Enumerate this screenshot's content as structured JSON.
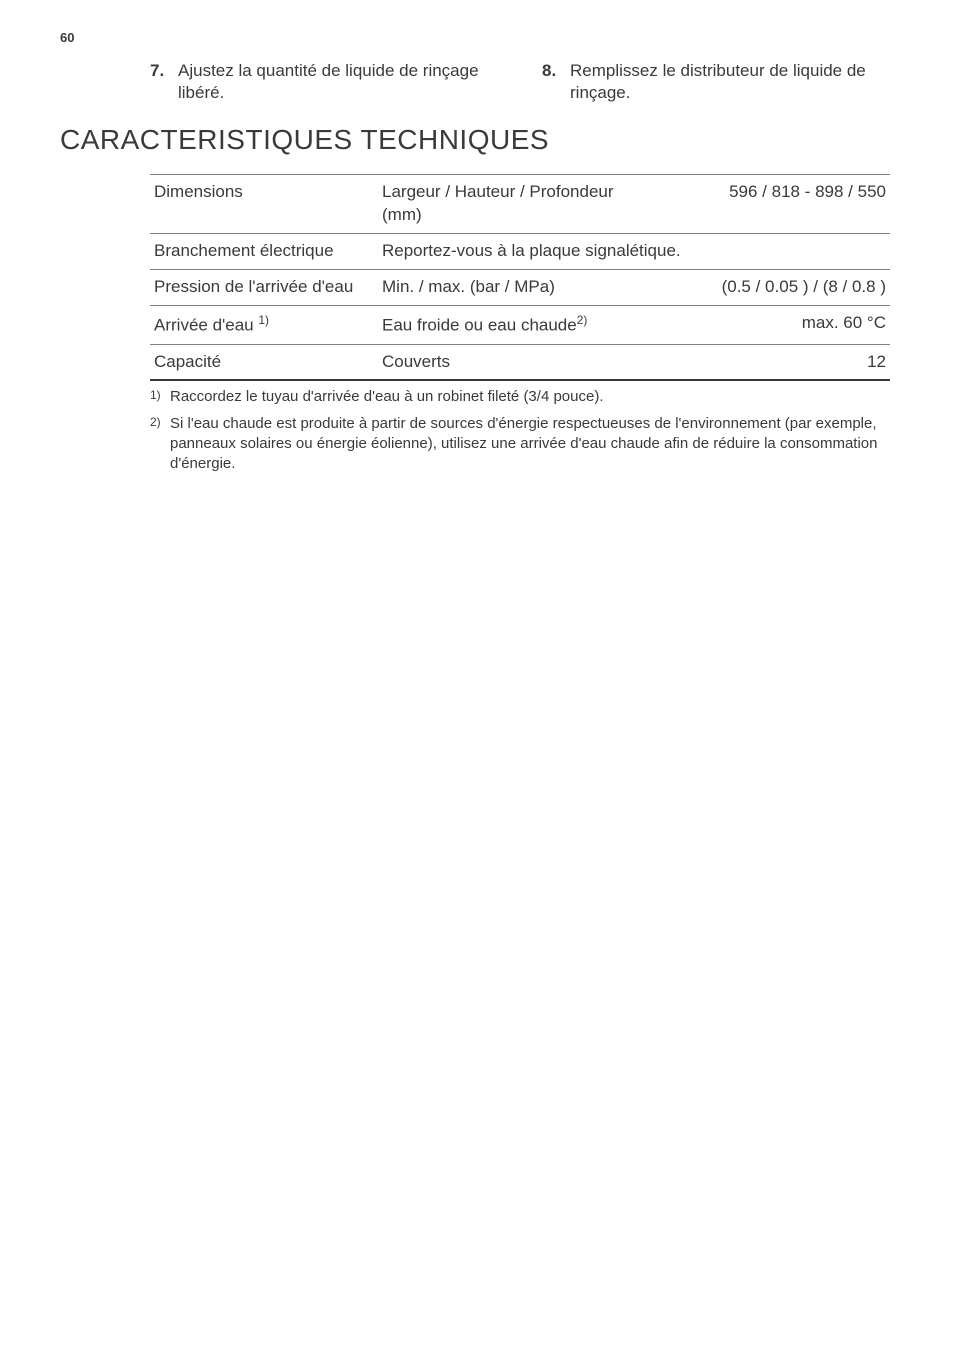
{
  "page_number": "60",
  "steps": [
    {
      "num": "7.",
      "text": "Ajustez la quantité de liquide de rinçage libéré."
    },
    {
      "num": "8.",
      "text": "Remplissez le distributeur de liquide de rinçage."
    }
  ],
  "section_title": "CARACTERISTIQUES TECHNIQUES",
  "table": {
    "rows": [
      {
        "c1": "Dimensions",
        "c2": "Largeur / Hauteur / Profondeur (mm)",
        "c3": "596 / 818 - 898 / 550",
        "sup1": "",
        "sup2": "",
        "span": false
      },
      {
        "c1": "Branchement électrique",
        "c2": "Reportez-vous à la plaque signalétique.",
        "c3": "",
        "sup1": "",
        "sup2": "",
        "span": true
      },
      {
        "c1": "Pression de l'arrivée d'eau",
        "c2": "Min. / max. (bar / MPa)",
        "c3": "(0.5 / 0.05 ) / (8 / 0.8 )",
        "sup1": "",
        "sup2": "",
        "span": false
      },
      {
        "c1": "Arrivée d'eau ",
        "c2": "Eau froide ou eau chaude",
        "c3": "max. 60 °C",
        "sup1": "1)",
        "sup2": "2)",
        "span": false
      },
      {
        "c1": "Capacité",
        "c2": "Couverts",
        "c3": "12",
        "sup1": "",
        "sup2": "",
        "span": false
      }
    ]
  },
  "footnotes": [
    {
      "num": "1)",
      "text": "Raccordez le tuyau d'arrivée d'eau à un robinet fileté (3/4 pouce)."
    },
    {
      "num": "2)",
      "text": "Si l'eau chaude est produite à partir de sources d'énergie respectueuses de l'environnement (par exemple, panneaux solaires ou énergie éolienne), utilisez une arrivée d'eau chaude afin de réduire la consommation d'énergie."
    }
  ]
}
